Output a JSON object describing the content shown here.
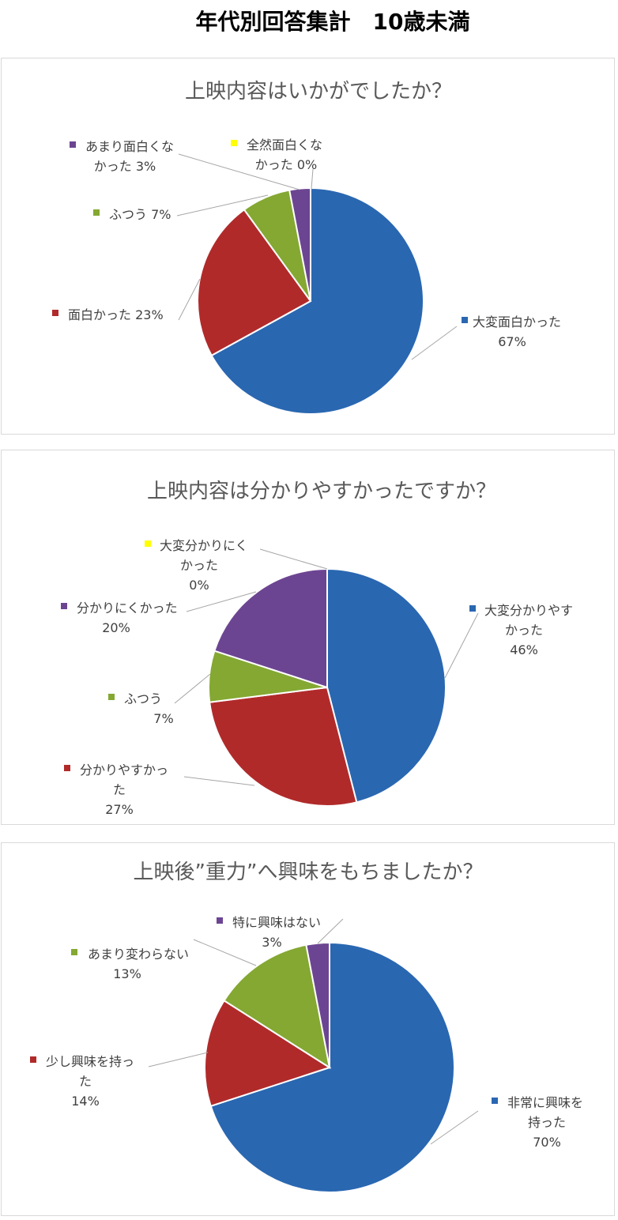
{
  "page": {
    "title": "年代別回答集計　10歳未満"
  },
  "colors": {
    "blue": "#2a67b1",
    "red": "#b12a2a",
    "green": "#84a832",
    "purple": "#6c4592",
    "yellow": "#ffff00",
    "leader": "#a6a6a6",
    "border": "#d9d9d9"
  },
  "chart_data": [
    {
      "type": "pie",
      "title": "上映内容はいかがでしたか？",
      "legend": "none",
      "slices": [
        {
          "name": "大変面白かった",
          "value": 67,
          "color": "#2a67b1",
          "label_lines": [
            "大変面白かった",
            "67%"
          ]
        },
        {
          "name": "面白かった",
          "value": 23,
          "color": "#b12a2a",
          "label_lines": [
            "面白かった 23%"
          ]
        },
        {
          "name": "ふつう",
          "value": 7,
          "color": "#84a832",
          "label_lines": [
            "ふつう 7%"
          ]
        },
        {
          "name": "あまり面白くなかった",
          "value": 3,
          "color": "#6c4592",
          "label_lines": [
            "あまり面白くな",
            "かった 3%"
          ]
        },
        {
          "name": "全然面白くなかった",
          "value": 0,
          "color": "#ffff00",
          "label_lines": [
            "全然面白くな",
            "かった 0%"
          ]
        }
      ]
    },
    {
      "type": "pie",
      "title": "上映内容は分かりやすかったですか？",
      "legend": "none",
      "slices": [
        {
          "name": "大変分かりやすかった",
          "value": 46,
          "color": "#2a67b1",
          "label_lines": [
            "大変分かりやす",
            "かった",
            "46%"
          ]
        },
        {
          "name": "分かりやすかった",
          "value": 27,
          "color": "#b12a2a",
          "label_lines": [
            "分かりやすかっ",
            "た",
            "27%"
          ]
        },
        {
          "name": "ふつう",
          "value": 7,
          "color": "#84a832",
          "label_lines": [
            "ふつう",
            "7%"
          ]
        },
        {
          "name": "分かりにくかった",
          "value": 20,
          "color": "#6c4592",
          "label_lines": [
            "分かりにくかった",
            "20%"
          ]
        },
        {
          "name": "大変分かりにくかった",
          "value": 0,
          "color": "#ffff00",
          "label_lines": [
            "大変分かりにく",
            "かった",
            "0%"
          ]
        }
      ]
    },
    {
      "type": "pie",
      "title": "上映後”重力”へ興味をもちましたか？",
      "legend": "none",
      "slices": [
        {
          "name": "非常に興味を持った",
          "value": 70,
          "color": "#2a67b1",
          "label_lines": [
            "非常に興味を",
            "持った",
            "70%"
          ]
        },
        {
          "name": "少し興味を持った",
          "value": 14,
          "color": "#b12a2a",
          "label_lines": [
            "少し興味を持っ",
            "た",
            "14%"
          ]
        },
        {
          "name": "あまり変わらない",
          "value": 13,
          "color": "#84a832",
          "label_lines": [
            "あまり変わらない",
            "13%"
          ]
        },
        {
          "name": "特に興味はない",
          "value": 3,
          "color": "#6c4592",
          "label_lines": [
            "特に興味はない",
            "3%"
          ]
        }
      ]
    }
  ]
}
